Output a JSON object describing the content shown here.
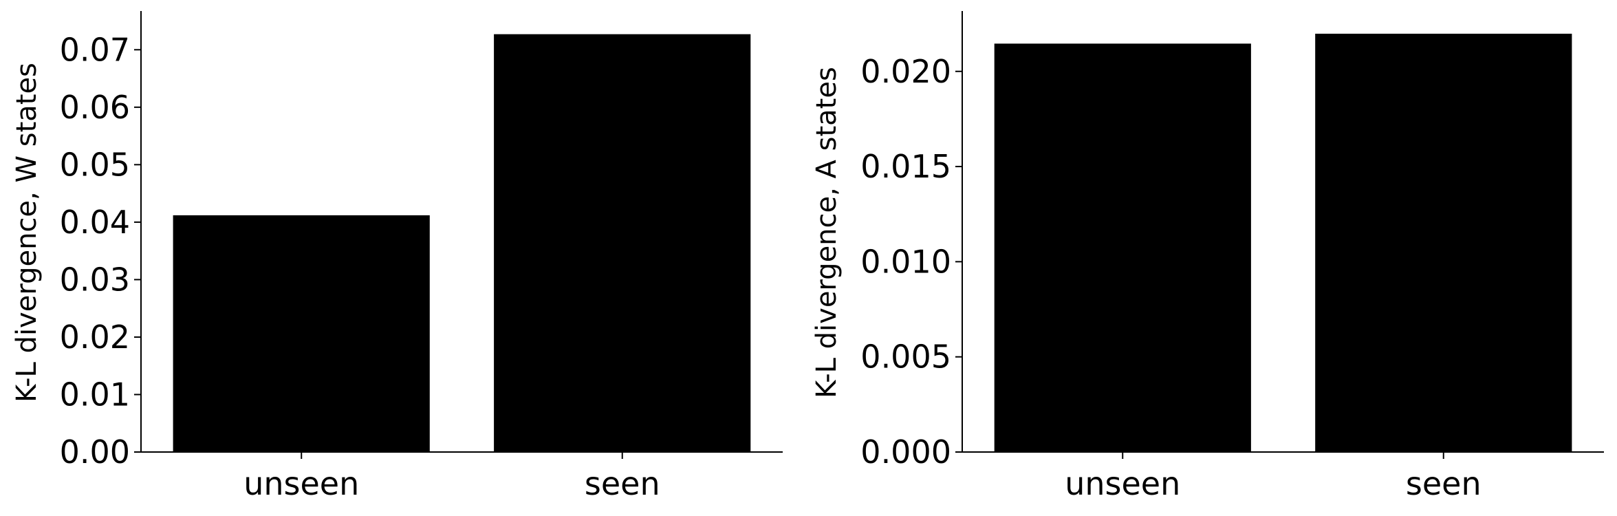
{
  "chart_data": [
    {
      "type": "bar",
      "categories": [
        "unseen",
        "seen"
      ],
      "values": [
        0.0412,
        0.0727
      ],
      "ylabel": "K-L divergence, W states",
      "xlabel": "",
      "ylim": [
        0,
        0.0765
      ],
      "yticks": [
        "0.00",
        "0.01",
        "0.02",
        "0.03",
        "0.04",
        "0.05",
        "0.06",
        "0.07"
      ],
      "ytick_values": [
        0,
        0.01,
        0.02,
        0.03,
        0.04,
        0.05,
        0.06,
        0.07
      ],
      "bar_color": "#000000",
      "grid": false
    },
    {
      "type": "bar",
      "categories": [
        "unseen",
        "seen"
      ],
      "values": [
        0.02146,
        0.02198
      ],
      "ylabel": "K-L divergence, A states",
      "xlabel": "",
      "ylim": [
        0,
        0.0231
      ],
      "yticks": [
        "0.000",
        "0.005",
        "0.010",
        "0.015",
        "0.020"
      ],
      "ytick_values": [
        0,
        0.005,
        0.01,
        0.015,
        0.02
      ],
      "bar_color": "#000000",
      "grid": false
    }
  ]
}
